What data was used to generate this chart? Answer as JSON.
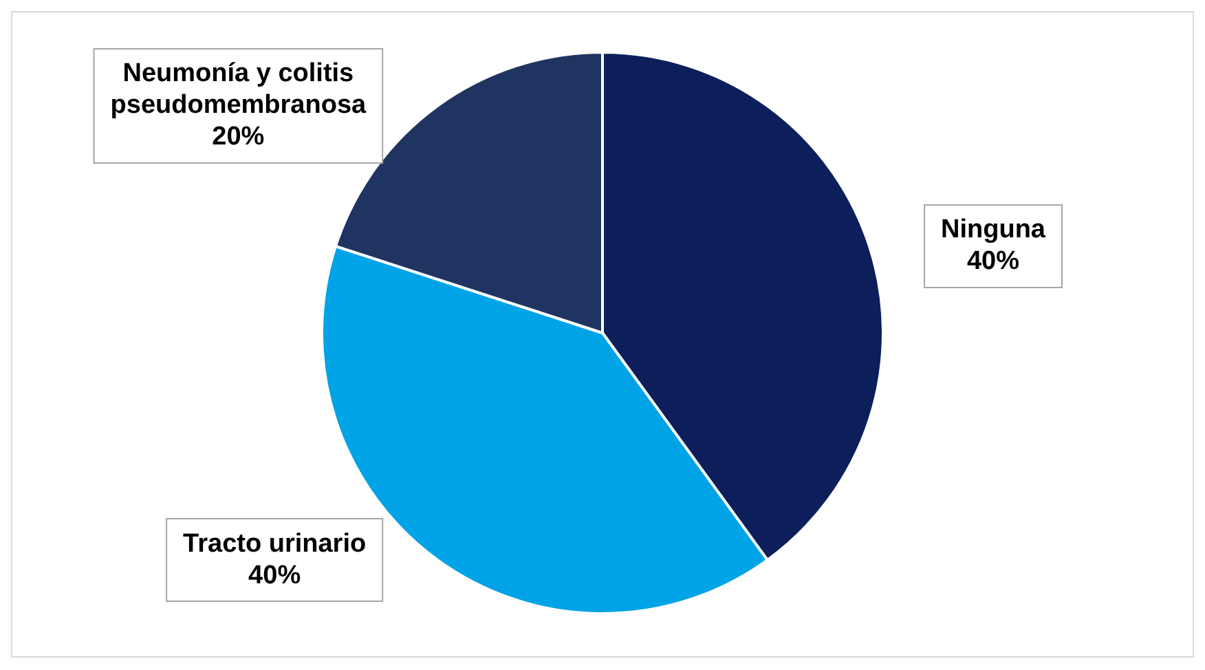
{
  "chart_data": {
    "type": "pie",
    "categories": [
      "Ninguna",
      "Tracto urinario",
      "Neumonía y colitis pseudomembranosa"
    ],
    "values": [
      40,
      40,
      20
    ],
    "value_labels": [
      "40%",
      "40%",
      "20%"
    ],
    "colors": [
      "#0c1f5b",
      "#00a3e6",
      "#1f3461"
    ]
  }
}
